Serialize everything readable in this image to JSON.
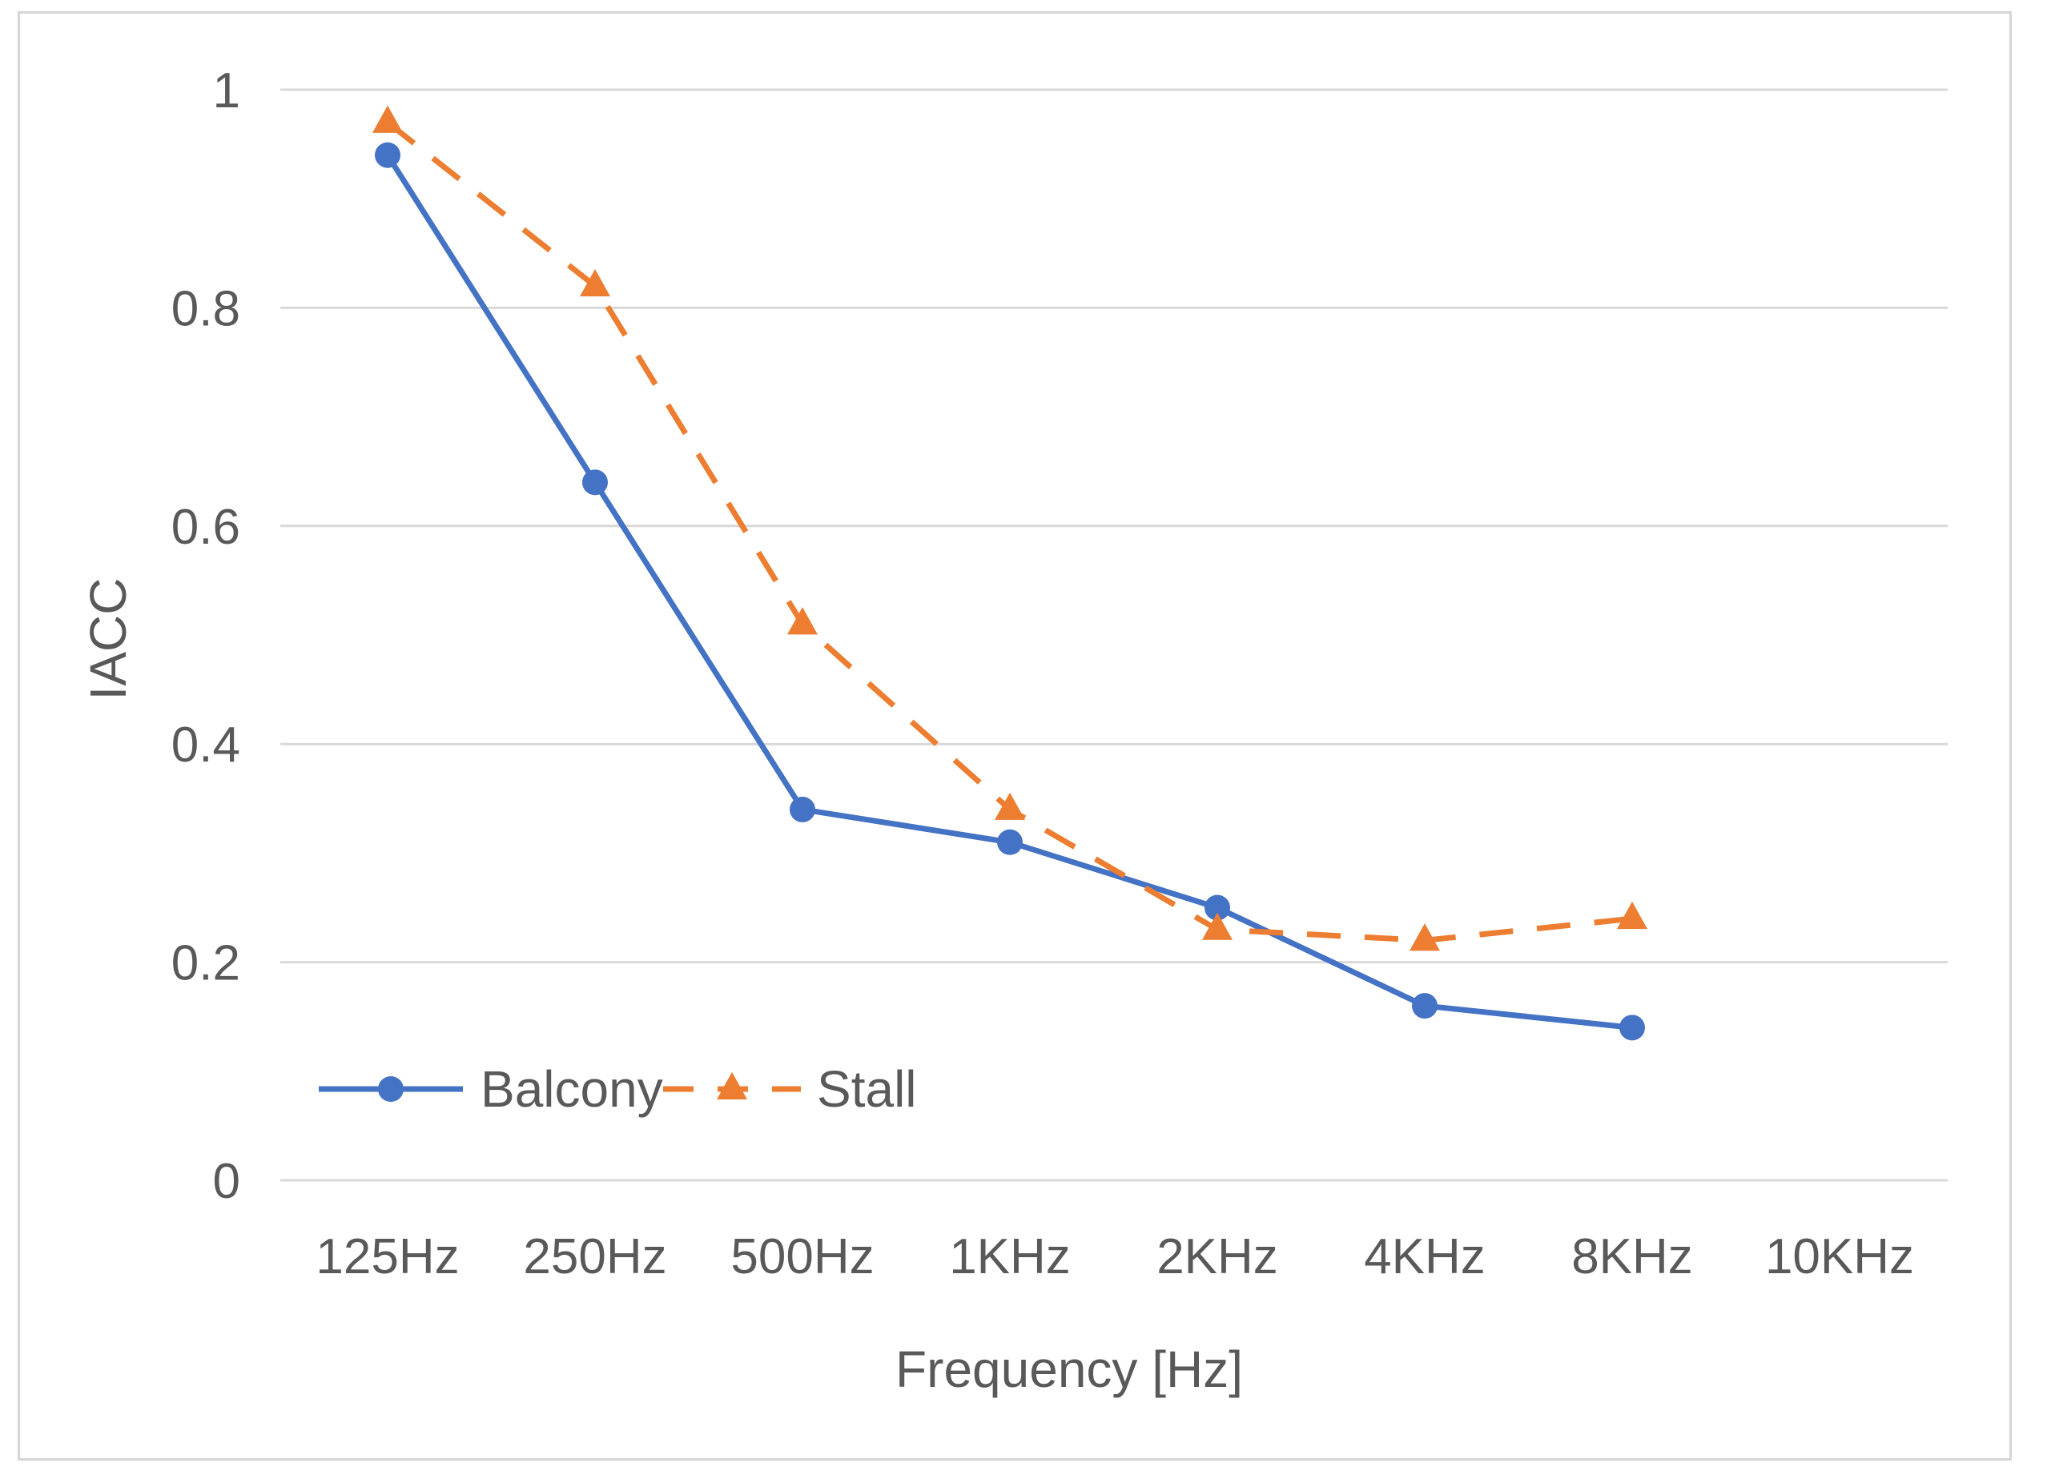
{
  "chart_data": {
    "type": "line",
    "title": "",
    "xlabel": "Frequency [Hz]",
    "ylabel": "IACC",
    "categories": [
      "125Hz",
      "250Hz",
      "500Hz",
      "1KHz",
      "2KHz",
      "4KHz",
      "8KHz",
      "10KHz"
    ],
    "yticks": [
      "0",
      "0.2",
      "0.4",
      "0.6",
      "0.8",
      "1"
    ],
    "ylim": [
      0,
      1
    ],
    "grid": true,
    "legend_position": "bottom-left",
    "series": [
      {
        "name": "Balcony",
        "values": [
          0.94,
          0.64,
          0.34,
          0.31,
          0.25,
          0.16,
          0.14,
          null
        ],
        "color": "#4472c4",
        "line_style": "solid",
        "marker": "circle"
      },
      {
        "name": "Stall",
        "values": [
          0.97,
          0.82,
          0.51,
          0.34,
          0.23,
          0.22,
          0.24,
          null
        ],
        "color": "#ed7d31",
        "line_style": "dashed",
        "marker": "triangle"
      }
    ]
  }
}
